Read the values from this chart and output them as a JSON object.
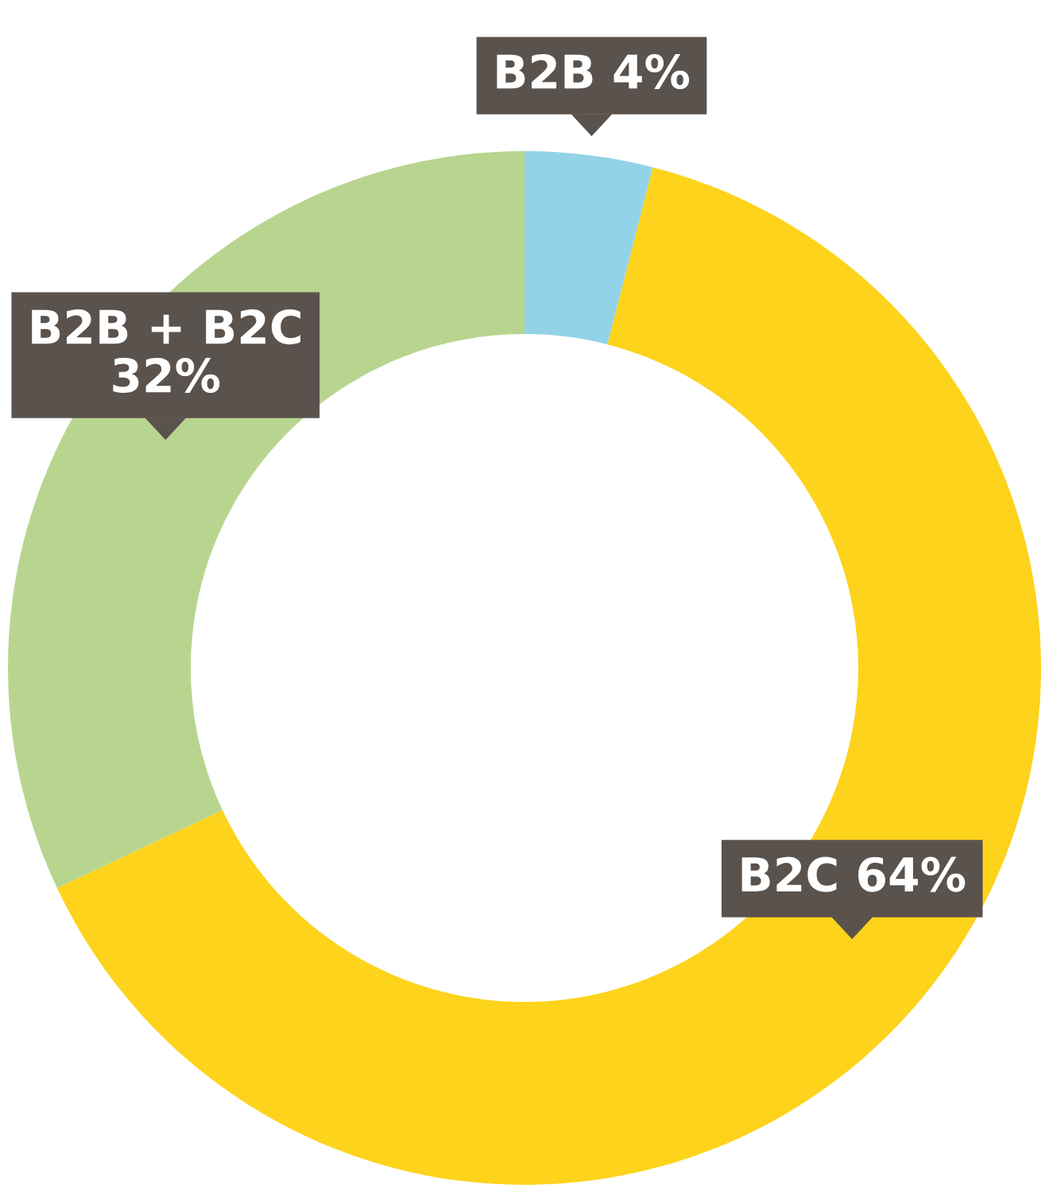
{
  "chart_data": {
    "type": "donut",
    "categories": [
      "B2B",
      "B2C",
      "B2B + B2C"
    ],
    "values": [
      4,
      64,
      32
    ],
    "colors": [
      "#93d3e8",
      "#fdd31c",
      "#b8d58f"
    ],
    "value_labels": [
      "4%",
      "64%",
      "32%"
    ]
  }
}
